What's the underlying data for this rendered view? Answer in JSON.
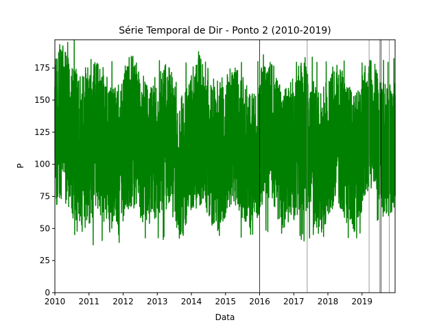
{
  "chart_data": {
    "type": "line",
    "title": "Série Temporal de Dir - Ponto 2 (2010-2019)",
    "xlabel": "Data",
    "ylabel": "P",
    "xlim": [
      2010.0,
      2019.97
    ],
    "ylim": [
      0,
      197
    ],
    "grid": false,
    "x_ticks": [
      "2010",
      "2011",
      "2012",
      "2013",
      "2014",
      "2015",
      "2016",
      "2017",
      "2018",
      "2019"
    ],
    "y_ticks": [
      0,
      25,
      50,
      75,
      100,
      125,
      150,
      175
    ],
    "series": [
      {
        "name": "",
        "color": "#008000",
        "sampling": "daily",
        "value_range": [
          37,
          197
        ],
        "envelope_by_year": [
          {
            "year": "2010",
            "min": 45,
            "max": 197
          },
          {
            "year": "2011",
            "min": 37,
            "max": 185
          },
          {
            "year": "2012",
            "min": 42,
            "max": 189
          },
          {
            "year": "2013",
            "min": 40,
            "max": 182
          },
          {
            "year": "2014",
            "min": 43,
            "max": 190
          },
          {
            "year": "2015",
            "min": 43,
            "max": 183
          },
          {
            "year": "2016",
            "min": 45,
            "max": 186
          },
          {
            "year": "2017",
            "min": 40,
            "max": 184
          },
          {
            "year": "2018",
            "min": 42,
            "max": 183
          },
          {
            "year": "2019",
            "min": 56,
            "max": 185
          }
        ]
      }
    ],
    "vertical_lines": [
      {
        "x": "2016-01-01",
        "color": "#000000"
      },
      {
        "x": "2017-05-25",
        "color": "#808080"
      },
      {
        "x": "2019-03-18",
        "color": "#808080"
      },
      {
        "x": "2019-07-10",
        "color": "#808080"
      },
      {
        "x": "2019-07-22",
        "color": "#000000"
      },
      {
        "x": "2019-10-20",
        "color": "#808080"
      }
    ]
  }
}
